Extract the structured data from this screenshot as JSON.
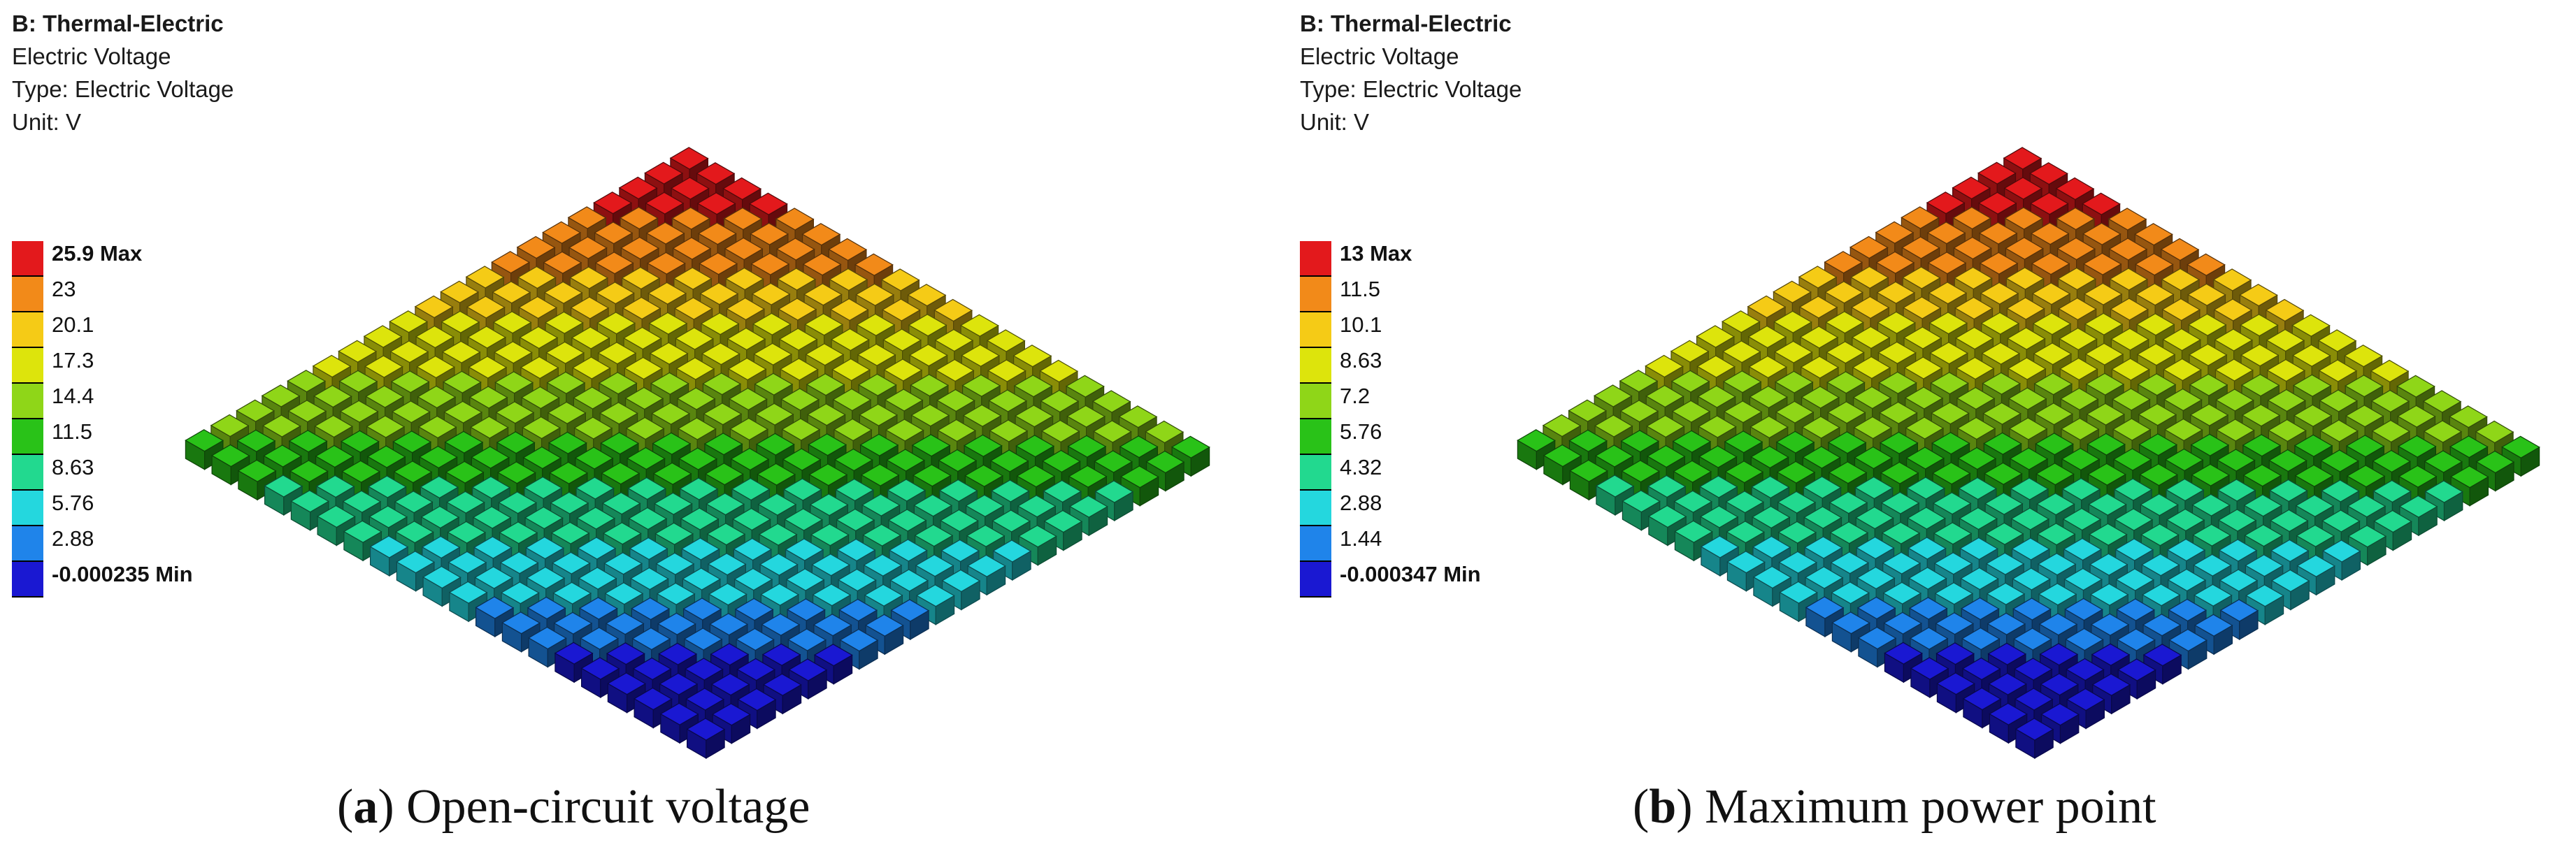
{
  "figure": {
    "panels": [
      {
        "id": "a",
        "header": {
          "title": "B: Thermal-Electric",
          "result": "Electric Voltage",
          "type": "Type: Electric Voltage",
          "unit": "Unit: V"
        },
        "legend": {
          "labels": [
            "25.9 Max",
            "23",
            "20.1",
            "17.3",
            "14.4",
            "11.5",
            "8.63",
            "5.76",
            "2.88",
            "-0.000235 Min"
          ],
          "colors": [
            "#e3191c",
            "#f28a19",
            "#f5cb16",
            "#dde40c",
            "#8fd618",
            "#29c218",
            "#22d98f",
            "#24d7de",
            "#1f84ea",
            "#1a18d2"
          ]
        },
        "caption": {
          "letter": "a",
          "text": "Open-circuit voltage"
        }
      },
      {
        "id": "b",
        "header": {
          "title": "B: Thermal-Electric",
          "result": "Electric Voltage",
          "type": "Type: Electric Voltage",
          "unit": "Unit: V"
        },
        "legend": {
          "labels": [
            "13 Max",
            "11.5",
            "10.1",
            "8.63",
            "7.2",
            "5.76",
            "4.32",
            "2.88",
            "1.44",
            "-0.000347 Min"
          ],
          "colors": [
            "#e3191c",
            "#f28a19",
            "#f5cb16",
            "#dde40c",
            "#8fd618",
            "#29c218",
            "#22d98f",
            "#24d7de",
            "#1f84ea",
            "#1a18d2"
          ]
        },
        "caption": {
          "letter": "b",
          "text": "Maximum power point"
        }
      }
    ],
    "grid_cells": 20
  }
}
